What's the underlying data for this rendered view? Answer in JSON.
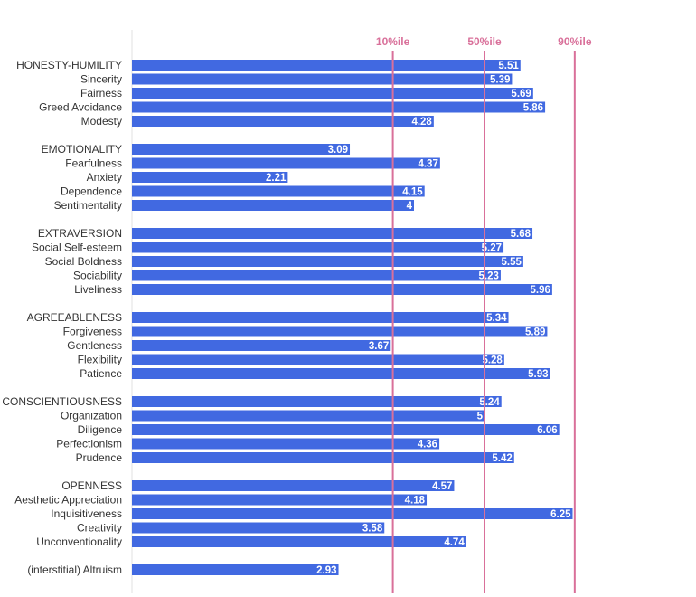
{
  "chart_data": {
    "type": "bar",
    "orientation": "horizontal",
    "xlim": [
      0,
      8.1
    ],
    "grid": false,
    "colors": {
      "bar": "#4169e1",
      "percentile_line": "#d9709a",
      "axis": "#e0e0e0"
    },
    "reference_lines": [
      {
        "label": "10%ile",
        "value": 3.7
      },
      {
        "label": "50%ile",
        "value": 5.0
      },
      {
        "label": "90%ile",
        "value": 6.28
      }
    ],
    "groups": [
      {
        "items": [
          {
            "label": "HONESTY-HUMILITY",
            "value": 5.51
          },
          {
            "label": "Sincerity",
            "value": 5.39
          },
          {
            "label": "Fairness",
            "value": 5.69
          },
          {
            "label": "Greed Avoidance",
            "value": 5.86
          },
          {
            "label": "Modesty",
            "value": 4.28
          }
        ]
      },
      {
        "items": [
          {
            "label": "EMOTIONALITY",
            "value": 3.09
          },
          {
            "label": "Fearfulness",
            "value": 4.37
          },
          {
            "label": "Anxiety",
            "value": 2.21
          },
          {
            "label": "Dependence",
            "value": 4.15
          },
          {
            "label": "Sentimentality",
            "value": 4
          }
        ]
      },
      {
        "items": [
          {
            "label": "EXTRAVERSION",
            "value": 5.68
          },
          {
            "label": "Social Self-esteem",
            "value": 5.27
          },
          {
            "label": "Social Boldness",
            "value": 5.55
          },
          {
            "label": "Sociability",
            "value": 5.23
          },
          {
            "label": "Liveliness",
            "value": 5.96
          }
        ]
      },
      {
        "items": [
          {
            "label": "AGREEABLENESS",
            "value": 5.34
          },
          {
            "label": "Forgiveness",
            "value": 5.89
          },
          {
            "label": "Gentleness",
            "value": 3.67
          },
          {
            "label": "Flexibility",
            "value": 5.28
          },
          {
            "label": "Patience",
            "value": 5.93
          }
        ]
      },
      {
        "items": [
          {
            "label": "CONSCIENTIOUSNESS",
            "value": 5.24
          },
          {
            "label": "Organization",
            "value": 5
          },
          {
            "label": "Diligence",
            "value": 6.06
          },
          {
            "label": "Perfectionism",
            "value": 4.36
          },
          {
            "label": "Prudence",
            "value": 5.42
          }
        ]
      },
      {
        "items": [
          {
            "label": "OPENNESS",
            "value": 4.57
          },
          {
            "label": "Aesthetic Appreciation",
            "value": 4.18
          },
          {
            "label": "Inquisitiveness",
            "value": 6.25
          },
          {
            "label": "Creativity",
            "value": 3.58
          },
          {
            "label": "Unconventionality",
            "value": 4.74
          }
        ]
      },
      {
        "items": [
          {
            "label": "(interstitial) Altruism",
            "value": 2.93
          }
        ]
      }
    ]
  }
}
